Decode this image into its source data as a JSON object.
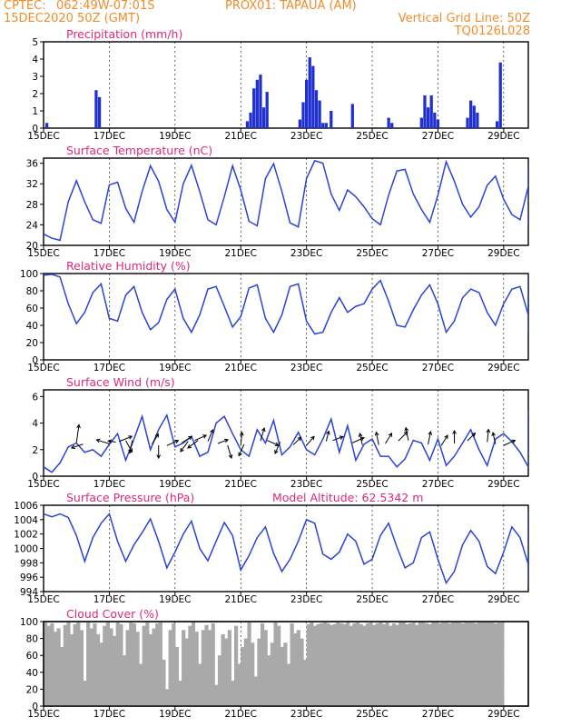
{
  "header": {
    "source": "CPTEC:",
    "coords": "062:49W-07:01S",
    "location": "PROX01: TAPAUA (AM)",
    "date": "15DEC2020 50Z (GMT)",
    "grid_note": "Vertical Grid Line: 50Z",
    "model_code": "TQ0126L028"
  },
  "colors": {
    "header": "#f08c2a",
    "title": "#e0287a",
    "line": "#2b43d6",
    "bar": "#1f2fd0",
    "cloud": "#a9a9a9",
    "arrow": "#000000"
  },
  "x_ticks": [
    "15DEC",
    "17DEC",
    "19DEC",
    "21DEC",
    "23DEC",
    "25DEC",
    "27DEC",
    "29DEC"
  ],
  "chart_data": [
    {
      "type": "bar",
      "title": "Precipitation (mm/h)",
      "ylim": [
        0,
        5
      ],
      "yticks": [
        "0",
        "1",
        "2",
        "3",
        "4",
        "5"
      ],
      "grid": "vertical dashed every 2 days",
      "values": [
        [
          0.1,
          0.3
        ],
        [
          1.6,
          2.2
        ],
        [
          1.7,
          1.8
        ],
        [
          6.2,
          0.4
        ],
        [
          6.3,
          0.9
        ],
        [
          6.4,
          2.3
        ],
        [
          6.5,
          2.8
        ],
        [
          6.6,
          3.1
        ],
        [
          6.7,
          1.2
        ],
        [
          6.8,
          2.1
        ],
        [
          7.8,
          0.5
        ],
        [
          7.9,
          1.5
        ],
        [
          8.0,
          2.8
        ],
        [
          8.1,
          4.1
        ],
        [
          8.2,
          3.6
        ],
        [
          8.3,
          2.2
        ],
        [
          8.4,
          1.6
        ],
        [
          8.5,
          0.3
        ],
        [
          8.6,
          0.3
        ],
        [
          8.75,
          1.0
        ],
        [
          9.4,
          1.4
        ],
        [
          10.5,
          0.6
        ],
        [
          10.6,
          0.3
        ],
        [
          11.5,
          0.6
        ],
        [
          11.6,
          1.9
        ],
        [
          11.7,
          1.2
        ],
        [
          11.8,
          1.9
        ],
        [
          11.9,
          0.9
        ],
        [
          12.0,
          0.5
        ],
        [
          12.9,
          0.6
        ],
        [
          13.0,
          1.6
        ],
        [
          13.1,
          1.3
        ],
        [
          13.2,
          0.9
        ],
        [
          13.8,
          0.4
        ],
        [
          13.9,
          3.8
        ]
      ]
    },
    {
      "type": "line",
      "title": "Surface Temperature (nC)",
      "ylim": [
        20,
        37
      ],
      "yticks": [
        "20",
        "24",
        "28",
        "32",
        "36"
      ],
      "x_start": 0,
      "x_step": 0.25,
      "values": [
        22.2,
        21.4,
        21.0,
        28.5,
        32.6,
        28.5,
        25.0,
        24.3,
        31.8,
        32.3,
        27.2,
        24.5,
        30.5,
        35.5,
        32.5,
        27.0,
        24.5,
        32.0,
        35.6,
        30.5,
        25.0,
        24.0,
        29.5,
        35.5,
        30.8,
        24.7,
        23.8,
        33.0,
        35.9,
        30.5,
        24.4,
        23.6,
        33.0,
        36.5,
        36.0,
        30.0,
        26.8,
        30.8,
        29.5,
        27.5,
        25.2,
        24.0,
        29.8,
        34.5,
        34.8,
        30.0,
        27.0,
        24.5,
        29.8,
        36.3,
        32.5,
        28.0,
        25.5,
        27.5,
        31.7,
        33.5,
        29.0,
        26.0,
        25.0,
        31.5,
        35.5,
        34.0,
        29.0,
        24.8,
        24.0,
        33.0,
        34.5,
        31.0,
        26.0,
        24.0,
        31.5,
        35.5,
        32.0,
        27.0,
        25.5,
        24.5,
        32.0,
        35.3,
        30.5,
        26.0,
        26.5,
        27.5,
        32.0,
        35.5,
        29.5,
        26.0,
        25.5,
        30.5,
        34.5,
        31.0,
        27.5,
        24.5,
        28.0,
        32.0,
        31.5,
        28.0,
        29.0,
        31.5,
        32.0,
        28.8
      ]
    },
    {
      "type": "line",
      "title": "Relative Humidity (%)",
      "ylim": [
        0,
        100
      ],
      "yticks": [
        "0",
        "20",
        "40",
        "60",
        "80",
        "100"
      ],
      "x_start": 0,
      "x_step": 0.25,
      "values": [
        98.0,
        99.0,
        96.0,
        65.0,
        42.0,
        55.0,
        78.0,
        88.0,
        48.0,
        45.0,
        75.0,
        85.0,
        55.0,
        35.0,
        43.0,
        70.0,
        82.0,
        48.0,
        32.0,
        52.0,
        82.0,
        85.0,
        62.0,
        38.0,
        50.0,
        83.0,
        87.0,
        48.0,
        32.0,
        52.0,
        85.0,
        88.0,
        45.0,
        30.0,
        32.0,
        55.0,
        72.0,
        55.0,
        62.0,
        65.0,
        82.0,
        92.0,
        68.0,
        40.0,
        38.0,
        58.0,
        75.0,
        87.0,
        65.0,
        32.0,
        45.0,
        72.0,
        82.0,
        78.0,
        55.0,
        40.0,
        65.0,
        82.0,
        85.0,
        52.0,
        35.0,
        40.0,
        70.0,
        88.0,
        90.0,
        52.0,
        40.0,
        55.0,
        82.0,
        92.0,
        50.0,
        33.0,
        50.0,
        75.0,
        80.0,
        87.0,
        50.0,
        33.0,
        55.0,
        65.0,
        62.0,
        60.0,
        45.0,
        35.0,
        65.0,
        88.0,
        92.0,
        60.0,
        38.0,
        55.0,
        80.0,
        88.0,
        96.0,
        98.0,
        99.0,
        70.0,
        50.0,
        45.0,
        60.0,
        80.0
      ]
    },
    {
      "type": "line",
      "title": "Surface Wind (m/s)",
      "ylim": [
        0,
        6.5
      ],
      "yticks": [
        "0",
        "2",
        "4",
        "6"
      ],
      "x_start": 0,
      "x_step": 0.25,
      "values": [
        0.7,
        0.3,
        1.0,
        2.2,
        2.5,
        1.8,
        2.0,
        1.5,
        2.4,
        3.2,
        1.2,
        2.8,
        4.5,
        2.0,
        3.5,
        4.6,
        2.2,
        2.5,
        3.0,
        1.5,
        1.8,
        4.0,
        4.5,
        3.2,
        2.0,
        1.5,
        3.5,
        2.5,
        4.2,
        1.6,
        2.2,
        3.3,
        2.0,
        1.6,
        2.8,
        4.3,
        1.8,
        3.8,
        1.2,
        2.4,
        2.8,
        1.5,
        1.5,
        0.7,
        1.3,
        2.7,
        2.5,
        1.2,
        2.8,
        0.8,
        1.5,
        2.5,
        3.5,
        2.0,
        0.8,
        2.8,
        3.2,
        2.6,
        1.8,
        0.7,
        3.5,
        4.8,
        2.0,
        2.8,
        2.7,
        3.8,
        1.5,
        1.0,
        0.6,
        2.5,
        3.8,
        4.2,
        3.5,
        2.2,
        0.8,
        2.5,
        3.6,
        2.0,
        2.7,
        3.0,
        1.8,
        2.0,
        3.0,
        2.5,
        2.0,
        1.3,
        3.0,
        2.8,
        1.6,
        2.2,
        2.6,
        2.5,
        1.8,
        2.5,
        2.4,
        1.2,
        2.0,
        1.8,
        1.5,
        3.8
      ],
      "arrows": [
        [
          1.0,
          0.2,
          1.4
        ],
        [
          1.2,
          -0.9,
          -0.3
        ],
        [
          2.0,
          -1.0,
          0.3
        ],
        [
          2.2,
          -0.6,
          0.1
        ],
        [
          2.3,
          1.0,
          0.4
        ],
        [
          2.5,
          0.5,
          -0.9
        ],
        [
          2.7,
          -0.2,
          -1.0
        ],
        [
          3.3,
          0.5,
          0.8
        ],
        [
          3.5,
          0.0,
          -1.0
        ],
        [
          3.75,
          0.9,
          0.4
        ],
        [
          4.2,
          0.8,
          0.5
        ],
        [
          4.4,
          -0.6,
          -0.8
        ],
        [
          4.6,
          0.9,
          0.4
        ],
        [
          4.7,
          -0.8,
          -0.6
        ],
        [
          5.0,
          0.4,
          0.9
        ],
        [
          5.3,
          0.8,
          0.3
        ],
        [
          5.6,
          0.3,
          -1.0
        ],
        [
          6.0,
          0.1,
          1.0
        ],
        [
          6.1,
          -0.4,
          -0.9
        ],
        [
          6.6,
          0.3,
          1.0
        ],
        [
          6.8,
          0.9,
          -0.4
        ],
        [
          7.2,
          -0.4,
          -0.9
        ],
        [
          7.6,
          0.6,
          0.6
        ],
        [
          8.0,
          0.6,
          0.7
        ],
        [
          8.6,
          0.2,
          0.8
        ],
        [
          8.8,
          0.8,
          0.3
        ],
        [
          9.4,
          0.9,
          0.4
        ],
        [
          9.7,
          -0.2,
          0.9
        ],
        [
          10.2,
          -0.2,
          1.0
        ],
        [
          10.4,
          0.5,
          0.8
        ],
        [
          10.8,
          0.7,
          0.7
        ],
        [
          11.1,
          -0.2,
          1.0
        ],
        [
          11.7,
          0.2,
          1.0
        ],
        [
          12.1,
          0.5,
          0.8
        ],
        [
          12.5,
          0.0,
          1.0
        ],
        [
          12.9,
          0.6,
          0.6
        ],
        [
          13.5,
          0.1,
          1.0
        ],
        [
          13.75,
          -0.2,
          0.9
        ],
        [
          14.0,
          0.9,
          0.4
        ]
      ]
    },
    {
      "type": "line",
      "title": "Surface Pressure (hPa)",
      "annotation": "Model Altitude: 62.5342 m",
      "ylim": [
        994,
        1006
      ],
      "yticks": [
        "994",
        "996",
        "998",
        "1000",
        "1002",
        "1004",
        "1006"
      ],
      "x_start": 0,
      "x_step": 0.25,
      "values": [
        1004.8,
        1004.4,
        1004.8,
        1004.3,
        1001.8,
        998.2,
        1001.5,
        1003.5,
        1004.8,
        1001.0,
        998.2,
        1000.5,
        1002.2,
        1004.1,
        1001.0,
        997.3,
        999.5,
        1002.0,
        1003.8,
        1000.0,
        998.3,
        1001.0,
        1003.6,
        1001.8,
        997.0,
        999.0,
        1001.5,
        1003.0,
        999.3,
        996.8,
        998.5,
        1001.0,
        1004.0,
        1003.5,
        999.2,
        998.5,
        999.5,
        1002.0,
        1001.0,
        997.8,
        998.5,
        1001.8,
        1003.5,
        1000.2,
        997.3,
        998.0,
        1001.5,
        1002.3,
        998.5,
        995.2,
        996.8,
        1000.5,
        1002.5,
        1001.0,
        997.5,
        996.5,
        999.5,
        1003.0,
        1001.5,
        997.8,
        995.0,
        998.5,
        1001.5,
        1003.2,
        999.0,
        995.0,
        997.8,
        1001.5,
        1003.0,
        1000.2,
        997.5,
        999.0,
        1002.0,
        1003.0,
        998.5,
        996.5,
        999.0,
        1001.8,
        1003.0,
        999.0,
        997.5,
        999.8,
        1002.0,
        1001.5,
        997.5,
        996.5,
        999.5,
        1002.0,
        1003.5,
        999.0,
        997.2,
        1000.0,
        1003.0,
        1005.0,
        1001.0,
        998.0,
        1001.0,
        1003.8,
        999.0,
        1000.5
      ]
    },
    {
      "type": "area",
      "title": "Cloud Cover (%)",
      "ylim": [
        0,
        100
      ],
      "yticks": [
        "0",
        "20",
        "40",
        "60",
        "80",
        "100"
      ],
      "x_start": 0,
      "x_step": 0.1,
      "values": [
        100,
        95,
        98,
        88,
        92,
        70,
        96,
        100,
        85,
        97,
        100,
        90,
        30,
        100,
        92,
        98,
        85,
        75,
        95,
        100,
        92,
        83,
        100,
        97,
        60,
        90,
        100,
        98,
        88,
        50,
        95,
        100,
        85,
        92,
        98,
        100,
        55,
        20,
        90,
        98,
        70,
        30,
        90,
        80,
        95,
        100,
        88,
        50,
        90,
        96,
        90,
        98,
        25,
        60,
        85,
        80,
        90,
        30,
        95,
        50,
        70,
        80,
        100,
        75,
        35,
        80,
        98,
        90,
        60,
        75,
        100,
        95,
        70,
        75,
        50,
        98,
        86,
        90,
        80,
        55,
        97,
        100,
        95,
        97,
        98,
        100,
        98,
        96,
        97,
        100,
        98,
        97,
        100,
        95,
        98,
        100,
        97,
        95,
        98,
        100,
        96,
        98,
        99,
        97,
        100,
        95,
        98,
        96,
        100,
        99,
        97,
        98,
        100,
        96,
        99,
        100,
        98,
        97,
        100,
        99,
        98,
        100,
        99,
        98,
        100,
        99,
        100,
        98,
        100,
        99,
        100,
        98,
        99,
        100,
        100,
        99,
        100,
        98,
        100,
        99
      ]
    }
  ]
}
